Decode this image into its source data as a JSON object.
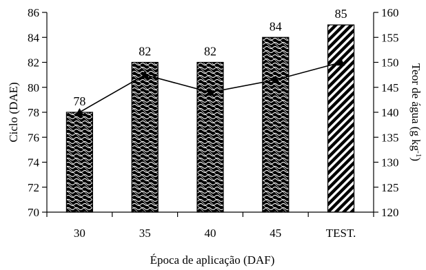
{
  "chart_data": {
    "type": "bar",
    "categories": [
      "30",
      "35",
      "40",
      "45",
      "TEST."
    ],
    "xlabel": "Época de aplicação (DAF)",
    "ylabel": "Ciclo (DAE)",
    "y2label_main": "Teor de água (g kg",
    "y2label_sup": "-1",
    "y2label_end": ")",
    "ylim": [
      70,
      86
    ],
    "yticks": [
      70,
      72,
      74,
      76,
      78,
      80,
      82,
      84,
      86
    ],
    "y2lim": [
      120,
      160
    ],
    "y2ticks": [
      120,
      125,
      130,
      135,
      140,
      145,
      150,
      155,
      160
    ],
    "series": [
      {
        "name": "",
        "type": "bar",
        "axis": "left",
        "values": [
          78,
          82,
          82,
          84,
          85
        ],
        "data_labels": [
          "78",
          "82",
          "82",
          "84",
          "85"
        ],
        "patterns": [
          "crosshatch-wave",
          "crosshatch-wave",
          "crosshatch-wave",
          "crosshatch-wave",
          "diagonal-stripes"
        ]
      },
      {
        "name": "",
        "type": "line",
        "axis": "right",
        "marker": "triangle",
        "values": [
          140,
          147.5,
          144,
          146.5,
          150
        ]
      }
    ],
    "grid": false,
    "legend": "none"
  }
}
